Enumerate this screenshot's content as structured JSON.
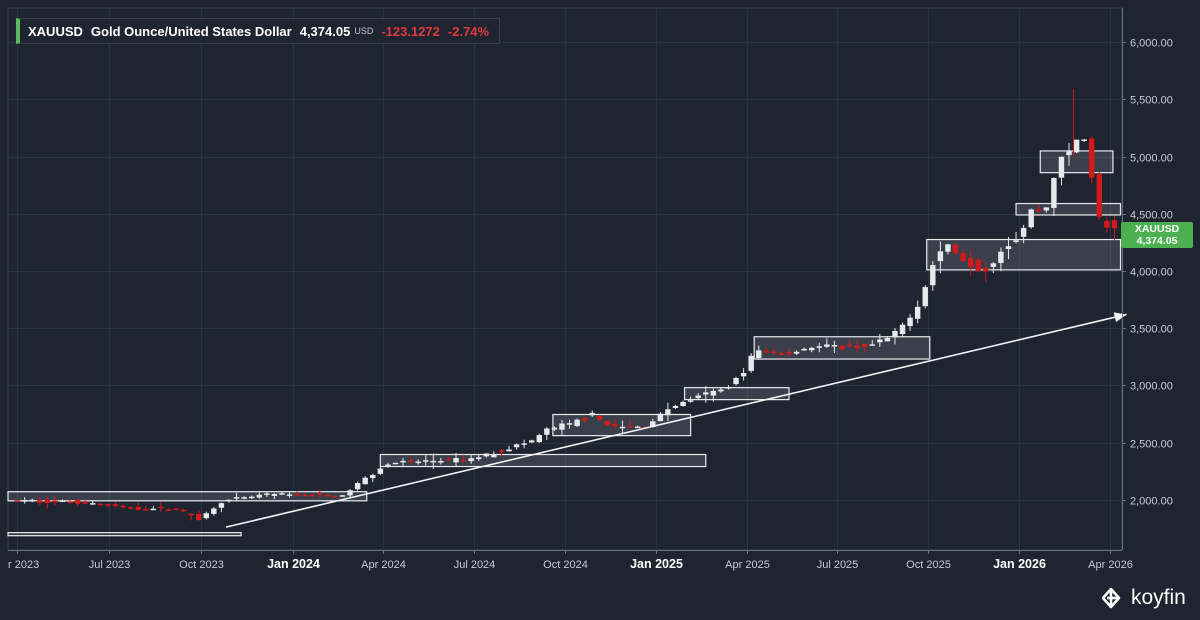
{
  "header": {
    "symbol": "XAUUSD",
    "name": "Gold Ounce/United States Dollar",
    "price": "4,374.05",
    "currency": "USD",
    "change": "-123.1272",
    "change_pct": "-2.74%"
  },
  "price_tag": {
    "symbol": "XAUUSD",
    "value": "4,374.05"
  },
  "brand": {
    "name": "koyfin"
  },
  "colors": {
    "background": "#1e2430",
    "up": "#e6e8eb",
    "down": "#d11a1a",
    "accent": "#5cb85c",
    "tag": "#4caf50"
  },
  "chart_data": {
    "type": "candlestick",
    "title": "XAUUSD Gold Ounce/United States Dollar",
    "y_ticks": [
      "2,000.00",
      "2,500.00",
      "3,000.00",
      "3,500.00",
      "4,000.00",
      "4,500.00",
      "5,000.00",
      "5,500.00",
      "6,000.00"
    ],
    "y_tick_values": [
      2000,
      2500,
      3000,
      3500,
      4000,
      4500,
      5000,
      5500,
      6000
    ],
    "ylim": [
      1560,
      6300
    ],
    "x_ticks": [
      {
        "label": "r 2023",
        "t": 0.0
      },
      {
        "label": "Jul 2023",
        "t": 3.03
      },
      {
        "label": "Oct 2023",
        "t": 6.07
      },
      {
        "label": "Jan 2024",
        "t": 9.1,
        "bold": true
      },
      {
        "label": "Apr 2024",
        "t": 12.1
      },
      {
        "label": "Jul 2024",
        "t": 15.1
      },
      {
        "label": "Oct 2024",
        "t": 18.1
      },
      {
        "label": "Jan 2025",
        "t": 21.1,
        "bold": true
      },
      {
        "label": "Apr 2025",
        "t": 24.1
      },
      {
        "label": "Jul 2025",
        "t": 27.1
      },
      {
        "label": "Oct 2025",
        "t": 30.1
      },
      {
        "label": "Jan 2026",
        "t": 33.1,
        "bold": true
      },
      {
        "label": "Apr 2026",
        "t": 36.1
      }
    ],
    "xlim": [
      -0.3,
      36.5
    ],
    "anchors": [
      [
        0,
        1990
      ],
      [
        2,
        1985
      ],
      [
        3,
        1960
      ],
      [
        4,
        1925
      ],
      [
        5.5,
        1920
      ],
      [
        6.3,
        1830
      ],
      [
        7,
        1985
      ],
      [
        8.5,
        2045
      ],
      [
        10,
        2040
      ],
      [
        11,
        2035
      ],
      [
        11.7,
        2180
      ],
      [
        12.5,
        2320
      ],
      [
        14,
        2340
      ],
      [
        15.2,
        2350
      ],
      [
        16.3,
        2440
      ],
      [
        17.2,
        2505
      ],
      [
        17.8,
        2620
      ],
      [
        18.5,
        2660
      ],
      [
        19.2,
        2740
      ],
      [
        20,
        2630
      ],
      [
        21,
        2640
      ],
      [
        21.7,
        2790
      ],
      [
        22.6,
        2890
      ],
      [
        23.5,
        2960
      ],
      [
        24.2,
        3100
      ],
      [
        24.6,
        3300
      ],
      [
        25.7,
        3280
      ],
      [
        26.5,
        3340
      ],
      [
        27.5,
        3330
      ],
      [
        28.5,
        3350
      ],
      [
        29.3,
        3450
      ],
      [
        30,
        3700
      ],
      [
        30.5,
        4050
      ],
      [
        30.9,
        4250
      ],
      [
        31.5,
        4100
      ],
      [
        32.2,
        4000
      ],
      [
        32.8,
        4200
      ],
      [
        33.4,
        4320
      ],
      [
        33.8,
        4560
      ],
      [
        34.2,
        4500
      ],
      [
        34.6,
        4950
      ],
      [
        35.1,
        5050
      ],
      [
        35.4,
        5250
      ],
      [
        35.7,
        4950
      ],
      [
        35.9,
        4470
      ],
      [
        36.25,
        4374
      ]
    ],
    "candles_per_month": 4,
    "zones": [
      {
        "t0": -0.3,
        "t1": 11.55,
        "low": 1990,
        "high": 2070
      },
      {
        "t0": 12.0,
        "t1": 22.75,
        "low": 2290,
        "high": 2395
      },
      {
        "t0": 17.7,
        "t1": 22.25,
        "low": 2560,
        "high": 2745
      },
      {
        "t0": 22.05,
        "t1": 25.5,
        "low": 2875,
        "high": 2980
      },
      {
        "t0": 24.35,
        "t1": 30.15,
        "low": 3230,
        "high": 3425
      },
      {
        "t0": 30.05,
        "t1": 36.45,
        "low": 4010,
        "high": 4275
      },
      {
        "t0": 33.0,
        "t1": 36.45,
        "low": 4490,
        "high": 4590
      },
      {
        "t0": 33.8,
        "t1": 36.2,
        "low": 4860,
        "high": 5050
      },
      {
        "t0": -0.3,
        "t1": 7.4,
        "low": 1685,
        "high": 1712
      }
    ],
    "trendline": {
      "t0": 6.9,
      "v0": 1760,
      "t1": 36.65,
      "v1": 3620
    },
    "last_price": 4374.05
  }
}
